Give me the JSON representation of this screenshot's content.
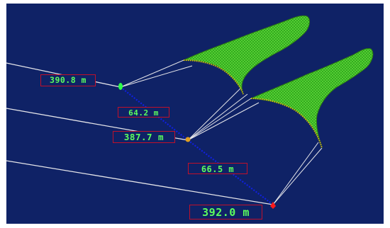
{
  "colors": {
    "background": "#0f2266",
    "net_fill": "#2fa51c",
    "net_mesh": "#5fe03a",
    "net_edge": "#2c7a12",
    "footrope_beads": "#d9a81c",
    "warp_line": "#e6e6ea",
    "spread_line": "#1020e0",
    "label_text": "#5dff5d",
    "label_border": "#c0102a",
    "marker_a": "#2cff4a",
    "marker_b": "#e0a020",
    "marker_c": "#ff1a1a"
  },
  "measurements": {
    "trawl_a_distance": "390.8 m",
    "spread_ab": "64.2 m",
    "trawl_b_distance": "387.7 m",
    "spread_bc": "66.5 m",
    "trawl_c_distance": "392.0 m"
  },
  "markers": [
    {
      "name": "trawl-a-marker",
      "color": "#2cff4a"
    },
    {
      "name": "trawl-b-marker",
      "color": "#e0a020"
    },
    {
      "name": "trawl-c-marker",
      "color": "#ff1a1a"
    }
  ]
}
